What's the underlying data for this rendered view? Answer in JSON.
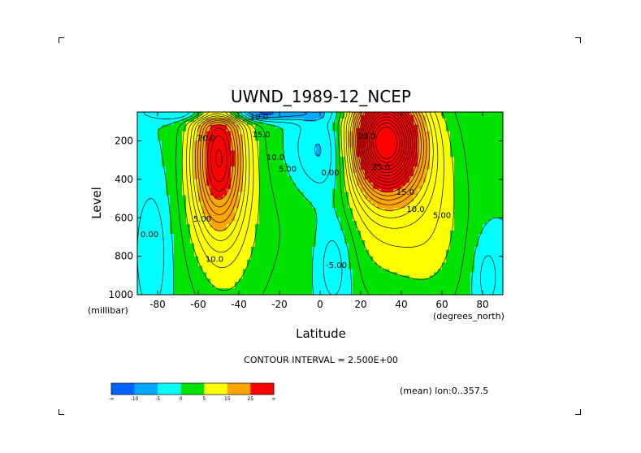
{
  "chart_data": {
    "type": "heatmap",
    "title": "UWND_1989-12_NCEP",
    "xlabel": "Latitude",
    "ylabel": "Level",
    "x_units": "(degrees_north)",
    "y_units": "(millibar)",
    "xlim": [
      -90,
      90
    ],
    "ylim": [
      1000,
      50
    ],
    "x_ticks": [
      -80,
      -60,
      -40,
      -20,
      0,
      20,
      40,
      60,
      80
    ],
    "y_ticks": [
      200,
      400,
      600,
      800,
      1000
    ],
    "grid": false,
    "contour_interval_text": "CONTOUR INTERVAL = 2.500E+00",
    "mean_text": "(mean) lon:0..357.5",
    "colorbar": {
      "boundaries": [
        "-∞",
        "-10",
        "-5",
        "0",
        "5",
        "15",
        "25",
        "∞"
      ],
      "colors": [
        "#0062ff",
        "#00a8ff",
        "#00ffff",
        "#00e300",
        "#ffff00",
        "#ffa500",
        "#ff0000"
      ]
    },
    "jets": [
      {
        "lat": -50,
        "level": 270,
        "peak": 30,
        "width_lat": 9,
        "width_level": 260
      },
      {
        "lat": 32,
        "level": 200,
        "peak": 50,
        "width_lat": 12,
        "width_level": 180
      }
    ],
    "contour_labels": [
      {
        "text": "20.0",
        "lat": -56,
        "level": 200
      },
      {
        "text": "15.0",
        "lat": -29,
        "level": 180
      },
      {
        "text": "10.0",
        "lat": -22,
        "level": 300
      },
      {
        "text": "5.00",
        "lat": -16,
        "level": 360
      },
      {
        "text": "5.00",
        "lat": -58,
        "level": 620
      },
      {
        "text": "10.0",
        "lat": -52,
        "level": 830
      },
      {
        "text": "0.00",
        "lat": -84,
        "level": 700
      },
      {
        "text": "0.00",
        "lat": 5,
        "level": 380
      },
      {
        "text": "-5.00",
        "lat": 8,
        "level": 860
      },
      {
        "text": "10.0",
        "lat": -30,
        "level": 90
      },
      {
        "text": "20.0",
        "lat": 23,
        "level": 190
      },
      {
        "text": "25.0",
        "lat": 30,
        "level": 350
      },
      {
        "text": "15.0",
        "lat": 42,
        "level": 480
      },
      {
        "text": "10.0",
        "lat": 47,
        "level": 570
      },
      {
        "text": "5.00",
        "lat": 60,
        "level": 600
      }
    ]
  }
}
